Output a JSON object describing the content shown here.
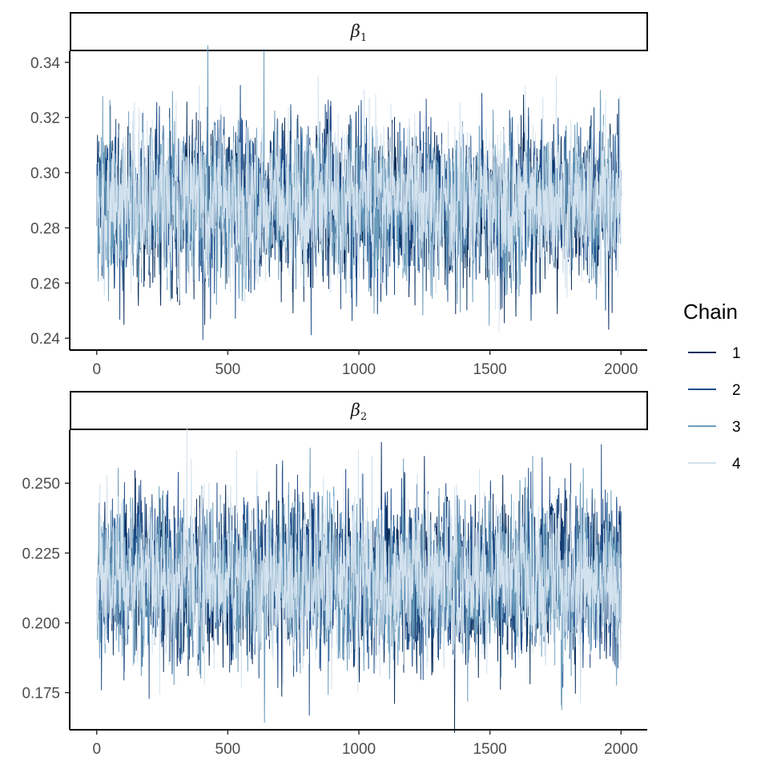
{
  "chart_data": {
    "type": "line",
    "legend": {
      "title": "Chain",
      "position": "right",
      "entries": [
        {
          "label": "1",
          "color": "#0b2e5c"
        },
        {
          "label": "2",
          "color": "#1f4e8c"
        },
        {
          "label": "3",
          "color": "#6b9cbb"
        },
        {
          "label": "4",
          "color": "#d3e2ee"
        }
      ]
    },
    "panels": [
      {
        "strip": {
          "symbol": "β",
          "subscript": "1"
        },
        "xlim": [
          -100,
          2100
        ],
        "ylim": [
          0.236,
          0.344
        ],
        "xticks": [
          0,
          500,
          1000,
          1500,
          2000
        ],
        "xtick_labels": [
          "0",
          "500",
          "1000",
          "1500",
          "2000"
        ],
        "yticks": [
          0.24,
          0.26,
          0.28,
          0.3,
          0.32,
          0.34
        ],
        "ytick_labels": [
          "0.24",
          "0.26",
          "0.28",
          "0.30",
          "0.32",
          "0.34"
        ],
        "iterations": [
          1,
          2000
        ],
        "series_mean": 0.289,
        "series_sd": 0.0135
      },
      {
        "strip": {
          "symbol": "β",
          "subscript": "2"
        },
        "xlim": [
          -100,
          2100
        ],
        "ylim": [
          0.162,
          0.269
        ],
        "xticks": [
          0,
          500,
          1000,
          1500,
          2000
        ],
        "xtick_labels": [
          "0",
          "500",
          "1000",
          "1500",
          "2000"
        ],
        "yticks": [
          0.175,
          0.2,
          0.225,
          0.25
        ],
        "ytick_labels": [
          "0.175",
          "0.200",
          "0.225",
          "0.250"
        ],
        "iterations": [
          1,
          2000
        ],
        "series_mean": 0.2155,
        "series_sd": 0.0135
      }
    ]
  }
}
